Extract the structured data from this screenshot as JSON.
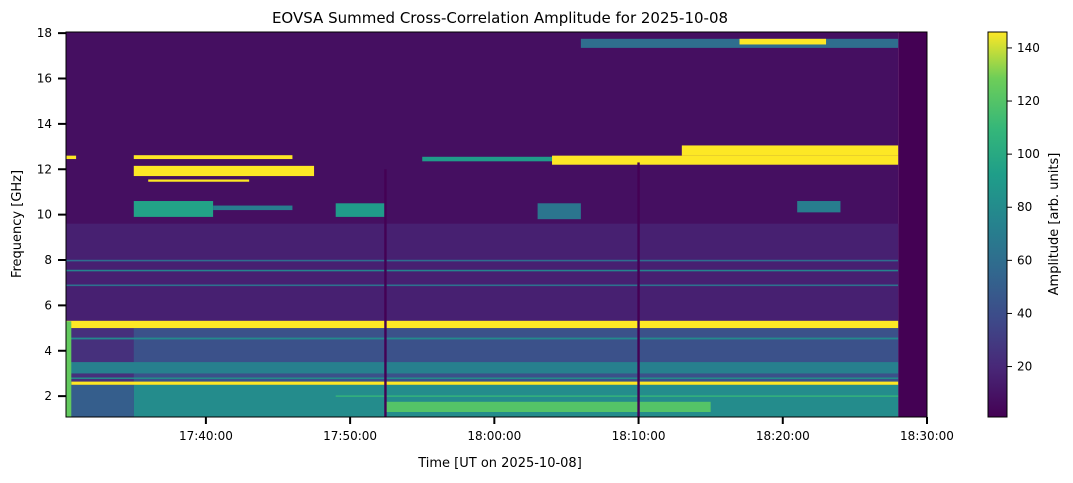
{
  "chart_data": {
    "type": "heatmap",
    "title": "EOVSA Summed Cross-Correlation Amplitude for 2025-10-08",
    "xlabel": "Time [UT on 2025-10-08]",
    "ylabel": "Frequency [GHz]",
    "colorbar_label": "Amplitude [arb. units]",
    "colormap": "viridis",
    "xlim": [
      "17:30:18",
      "18:30:00"
    ],
    "ylim": [
      1.08,
      18.05
    ],
    "clim": [
      1,
      146
    ],
    "x_ticks": [
      "17:40:00",
      "17:50:00",
      "18:00:00",
      "18:10:00",
      "18:20:00",
      "18:30:00"
    ],
    "y_ticks": [
      2,
      4,
      6,
      8,
      10,
      12,
      14,
      16,
      18
    ],
    "colorbar_ticks": [
      20,
      40,
      60,
      80,
      100,
      120,
      140
    ],
    "features": [
      {
        "name": "background",
        "t0": "17:30:18",
        "t1": "18:28:00",
        "f0": 1.08,
        "f1": 18.05,
        "amp": 8
      },
      {
        "name": "no-data",
        "t0": "18:28:00",
        "t1": "18:30:00",
        "f0": 1.08,
        "f1": 18.05,
        "amp": 1
      },
      {
        "name": "mid-band",
        "t0": "17:30:18",
        "t1": "18:28:00",
        "f0": 5.3,
        "f1": 9.6,
        "amp": 16
      },
      {
        "name": "low-band",
        "t0": "17:30:18",
        "t1": "18:28:00",
        "f0": 1.08,
        "f1": 5.0,
        "amp": 42
      },
      {
        "name": "low-band-early",
        "t0": "17:30:40",
        "t1": "17:35:00",
        "f0": 1.08,
        "f1": 5.0,
        "amp": 24
      },
      {
        "name": "l-band",
        "t0": "17:35:00",
        "t1": "18:28:00",
        "f0": 1.08,
        "f1": 2.5,
        "amp": 80
      },
      {
        "name": "l-band-early",
        "t0": "17:30:18",
        "t1": "17:35:00",
        "f0": 1.08,
        "f1": 2.5,
        "amp": 50
      },
      {
        "name": "l-band-bright",
        "t0": "17:52:30",
        "t1": "18:15:00",
        "f0": 1.3,
        "f1": 1.75,
        "amp": 120
      },
      {
        "name": "line-2.0",
        "t0": "17:49:00",
        "t1": "18:28:00",
        "f0": 1.97,
        "f1": 2.03,
        "amp": 110
      },
      {
        "name": "line-2.55",
        "t0": "17:30:40",
        "t1": "18:28:00",
        "f0": 2.5,
        "f1": 2.64,
        "amp": 146
      },
      {
        "name": "line-2.8",
        "t0": "17:30:18",
        "t1": "18:28:00",
        "f0": 2.76,
        "f1": 2.82,
        "amp": 85
      },
      {
        "name": "rfi-3.2",
        "t0": "17:30:18",
        "t1": "18:28:00",
        "f0": 3.0,
        "f1": 3.5,
        "amp": 72
      },
      {
        "name": "line-4.5",
        "t0": "17:30:18",
        "t1": "18:28:00",
        "f0": 4.5,
        "f1": 4.58,
        "amp": 78
      },
      {
        "name": "line-5.1",
        "t0": "17:30:18",
        "t1": "18:28:00",
        "f0": 5.0,
        "f1": 5.32,
        "amp": 146
      },
      {
        "name": "line-6.9",
        "t0": "17:30:18",
        "t1": "18:28:00",
        "f0": 6.85,
        "f1": 6.92,
        "amp": 62
      },
      {
        "name": "line-7.5",
        "t0": "17:30:18",
        "t1": "18:28:00",
        "f0": 7.5,
        "f1": 7.57,
        "amp": 75
      },
      {
        "name": "line-8.0",
        "t0": "17:30:18",
        "t1": "18:28:00",
        "f0": 7.94,
        "f1": 8.01,
        "amp": 60
      },
      {
        "name": "burst-10-a",
        "t0": "17:35:00",
        "t1": "17:40:30",
        "f0": 9.9,
        "f1": 10.6,
        "amp": 95
      },
      {
        "name": "burst-10-b",
        "t0": "17:40:30",
        "t1": "17:46:00",
        "f0": 10.2,
        "f1": 10.4,
        "amp": 70
      },
      {
        "name": "burst-10-c",
        "t0": "17:49:00",
        "t1": "17:52:30",
        "f0": 9.9,
        "f1": 10.5,
        "amp": 90
      },
      {
        "name": "burst-10-d",
        "t0": "18:03:00",
        "t1": "18:06:00",
        "f0": 9.8,
        "f1": 10.5,
        "amp": 65
      },
      {
        "name": "burst-10-e",
        "t0": "18:21:00",
        "t1": "18:24:00",
        "f0": 10.1,
        "f1": 10.6,
        "amp": 70
      },
      {
        "name": "band-12.5-edge",
        "t0": "17:30:18",
        "t1": "17:31:00",
        "f0": 12.45,
        "f1": 12.6,
        "amp": 146
      },
      {
        "name": "band-12.5-early",
        "t0": "17:35:00",
        "t1": "17:46:00",
        "f0": 12.45,
        "f1": 12.62,
        "amp": 146
      },
      {
        "name": "band-11.9-early",
        "t0": "17:35:00",
        "t1": "17:47:30",
        "f0": 11.7,
        "f1": 12.15,
        "amp": 146
      },
      {
        "name": "band-11.5-early",
        "t0": "17:36:00",
        "t1": "17:43:00",
        "f0": 11.45,
        "f1": 11.55,
        "amp": 146
      },
      {
        "name": "band-12.4-mid",
        "t0": "17:55:00",
        "t1": "18:04:00",
        "f0": 12.35,
        "f1": 12.55,
        "amp": 90
      },
      {
        "name": "band-12.4-late",
        "t0": "18:04:00",
        "t1": "18:28:00",
        "f0": 12.2,
        "f1": 12.6,
        "amp": 146
      },
      {
        "name": "band-12.8-late",
        "t0": "18:13:00",
        "t1": "18:28:00",
        "f0": 12.6,
        "f1": 13.05,
        "amp": 146
      },
      {
        "name": "band-17.5-faint",
        "t0": "18:06:00",
        "t1": "18:28:00",
        "f0": 17.35,
        "f1": 17.75,
        "amp": 60
      },
      {
        "name": "band-17.6-bright",
        "t0": "18:17:00",
        "t1": "18:23:00",
        "f0": 17.5,
        "f1": 17.75,
        "amp": 146
      },
      {
        "name": "edge-column",
        "t0": "17:30:18",
        "t1": "17:30:40",
        "f0": 1.08,
        "f1": 5.3,
        "amp": 125
      },
      {
        "name": "dropout-1",
        "t0": "17:52:22",
        "t1": "17:52:32",
        "f0": 1.08,
        "f1": 12.0,
        "amp": 1
      },
      {
        "name": "dropout-2",
        "t0": "18:09:55",
        "t1": "18:10:05",
        "f0": 1.08,
        "f1": 12.3,
        "amp": 1
      }
    ]
  }
}
